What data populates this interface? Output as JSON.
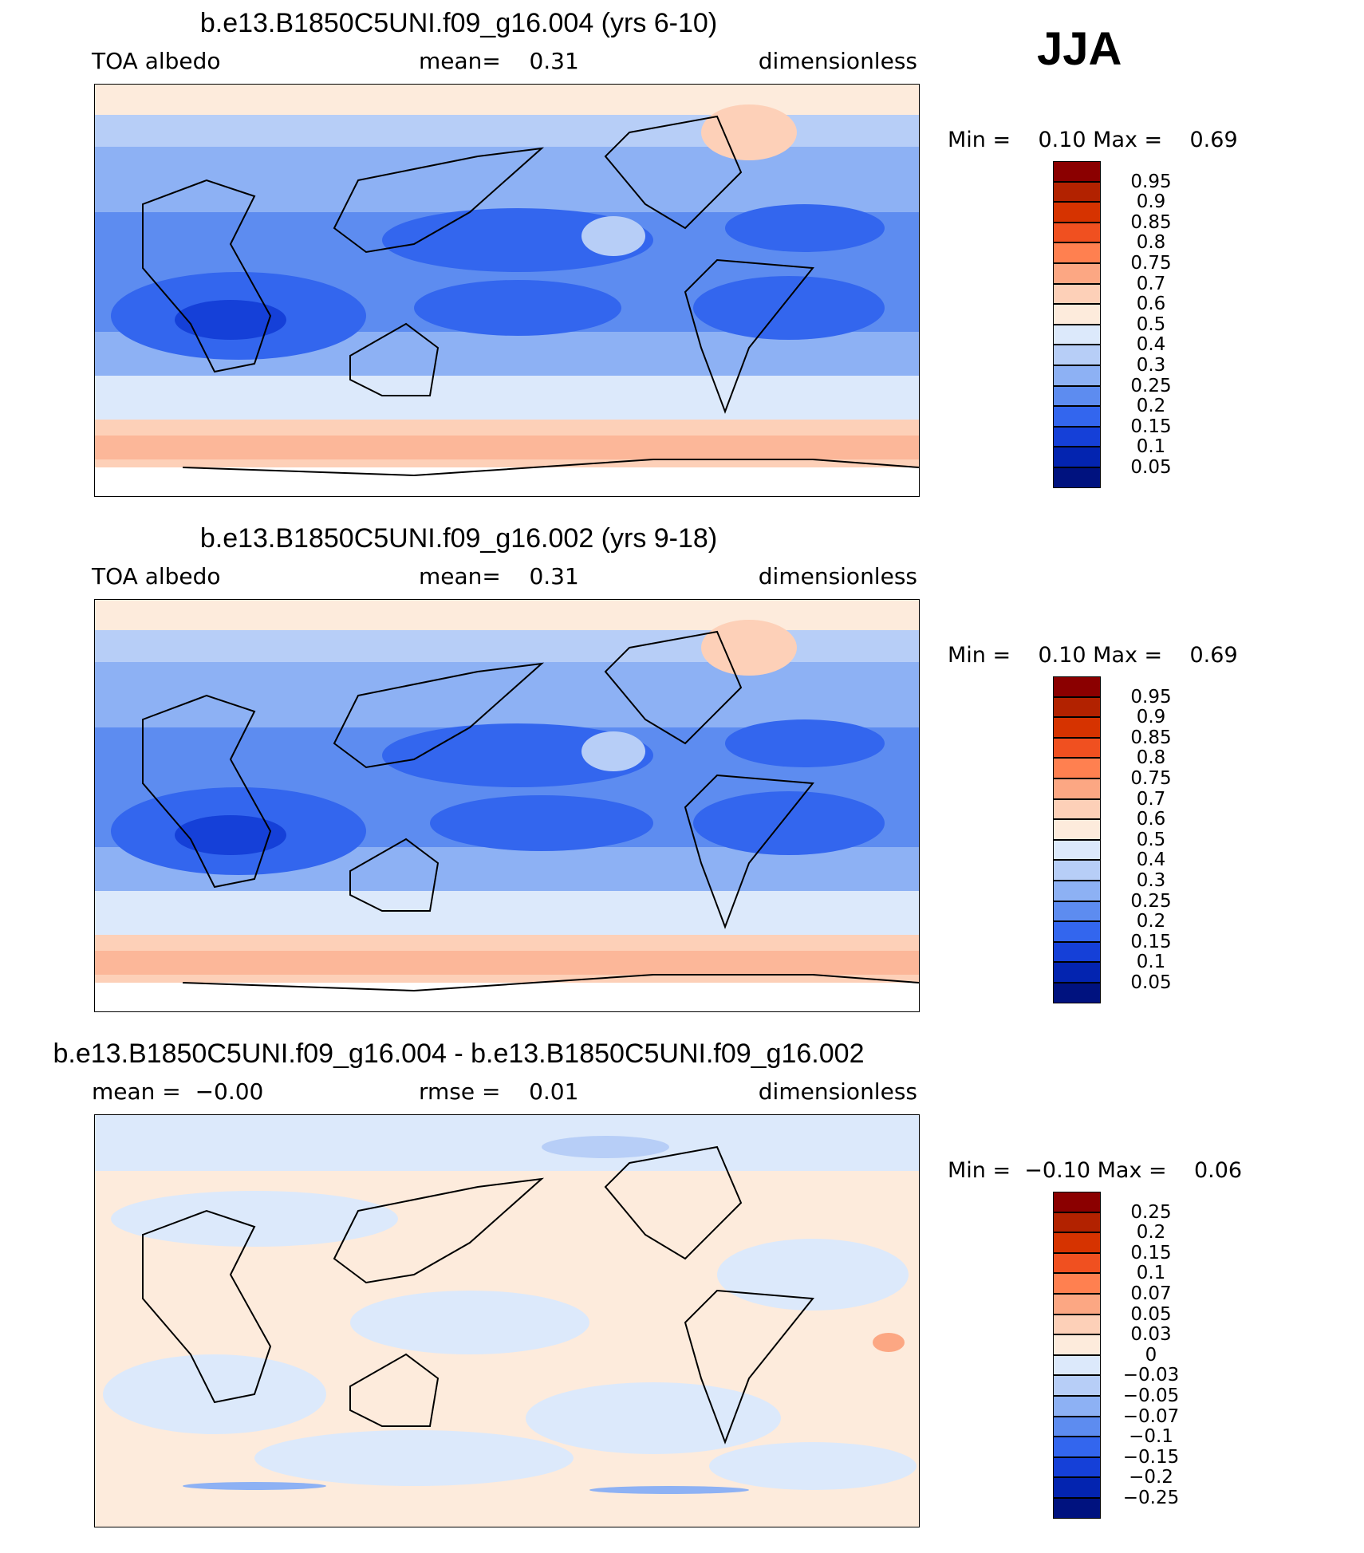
{
  "season": "JJA",
  "panels": [
    {
      "title": "b.e13.B1850C5UNI.f09_g16.004 (yrs 6-10)",
      "left_label": "TOA albedo",
      "mid_label": "mean=    0.31",
      "right_label": "dimensionless",
      "min_max": "Min =    0.10 Max =    0.69"
    },
    {
      "title": "b.e13.B1850C5UNI.f09_g16.002 (yrs 9-18)",
      "left_label": "TOA albedo",
      "mid_label": "mean=    0.31",
      "right_label": "dimensionless",
      "min_max": "Min =    0.10 Max =    0.69"
    },
    {
      "title": "b.e13.B1850C5UNI.f09_g16.004 - b.e13.B1850C5UNI.f09_g16.002",
      "left_label": "mean =  −0.00",
      "mid_label": "rmse =    0.01",
      "right_label": "dimensionless",
      "min_max": "Min =  −0.10 Max =    0.06"
    }
  ],
  "chart_data": [
    {
      "type": "heatmap",
      "title": "b.e13.B1850C5UNI.f09_g16.004 (yrs 6-10)",
      "variable": "TOA albedo",
      "units": "dimensionless",
      "mean": 0.31,
      "min": 0.1,
      "max": 0.69,
      "colorbar_levels": [
        "0.95",
        "0.9",
        "0.85",
        "0.8",
        "0.75",
        "0.7",
        "0.6",
        "0.5",
        "0.4",
        "0.3",
        "0.25",
        "0.2",
        "0.15",
        "0.1",
        "0.05"
      ],
      "colorbar_colors": [
        "#8b0000",
        "#b22200",
        "#d63300",
        "#f05020",
        "#ff8050",
        "#fca783",
        "#fdd0b8",
        "#fdebdc",
        "#dce9fb",
        "#b7cef7",
        "#8db1f4",
        "#5d8cf0",
        "#3366ee",
        "#1540d8",
        "#0324b0",
        "#00127f"
      ]
    },
    {
      "type": "heatmap",
      "title": "b.e13.B1850C5UNI.f09_g16.002 (yrs 9-18)",
      "variable": "TOA albedo",
      "units": "dimensionless",
      "mean": 0.31,
      "min": 0.1,
      "max": 0.69,
      "colorbar_levels": [
        "0.95",
        "0.9",
        "0.85",
        "0.8",
        "0.75",
        "0.7",
        "0.6",
        "0.5",
        "0.4",
        "0.3",
        "0.25",
        "0.2",
        "0.15",
        "0.1",
        "0.05"
      ],
      "colorbar_colors": [
        "#8b0000",
        "#b22200",
        "#d63300",
        "#f05020",
        "#ff8050",
        "#fca783",
        "#fdd0b8",
        "#fdebdc",
        "#dce9fb",
        "#b7cef7",
        "#8db1f4",
        "#5d8cf0",
        "#3366ee",
        "#1540d8",
        "#0324b0",
        "#00127f"
      ]
    },
    {
      "type": "heatmap",
      "title": "b.e13.B1850C5UNI.f09_g16.004 - b.e13.B1850C5UNI.f09_g16.002",
      "variable": "TOA albedo difference",
      "units": "dimensionless",
      "mean": -0.0,
      "rmse": 0.01,
      "min": -0.1,
      "max": 0.06,
      "colorbar_levels": [
        "0.25",
        "0.2",
        "0.15",
        "0.1",
        "0.07",
        "0.05",
        "0.03",
        "0",
        "−0.03",
        "−0.05",
        "−0.07",
        "−0.1",
        "−0.15",
        "−0.2",
        "−0.25"
      ],
      "colorbar_colors": [
        "#8b0000",
        "#b22200",
        "#d63300",
        "#f05020",
        "#ff8050",
        "#fca783",
        "#fdd0b8",
        "#fdebdc",
        "#dce9fb",
        "#b7cef7",
        "#8db1f4",
        "#5d8cf0",
        "#3366ee",
        "#1540d8",
        "#0324b0",
        "#00127f"
      ]
    }
  ]
}
